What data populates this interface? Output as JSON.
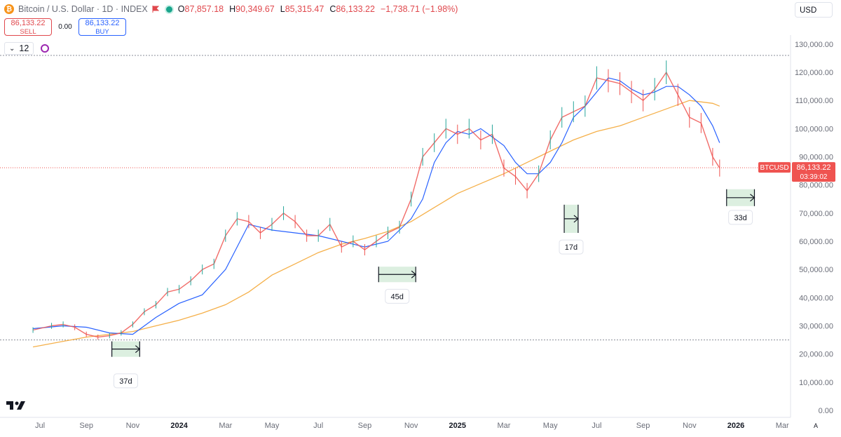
{
  "header": {
    "symbol_title": "Bitcoin / U.S. Dollar · 1D · INDEX",
    "ohlc": [
      {
        "key": "O",
        "value": "87,857.18"
      },
      {
        "key": "H",
        "value": "90,349.67"
      },
      {
        "key": "L",
        "value": "85,315.47"
      },
      {
        "key": "C",
        "value": "86,133.22"
      }
    ],
    "change": "−1,738.71 (−1.98%)",
    "sell_price": "86,133.22",
    "sell_label": "SELL",
    "spread": "0.00",
    "buy_price": "86,133.22",
    "buy_label": "BUY",
    "indicator_count": "12",
    "currency": "USD"
  },
  "price_tag": {
    "symbol": "BTCUSD",
    "price": "86,133.22",
    "countdown": "03:39:02"
  },
  "colors": {
    "up": "#26a69a",
    "down": "#ef5350",
    "ma_fast": "#2962ff",
    "ma_slow": "#f5b04a",
    "range_fill": "#dcefe0"
  },
  "chart_data": {
    "type": "line",
    "title": "Bitcoin / U.S. Dollar · 1D · INDEX",
    "ylim": [
      0,
      135000
    ],
    "y_ticks": [
      "130,000.00",
      "120,000.00",
      "110,000.00",
      "100,000.00",
      "90,000.00",
      "80,000.00",
      "70,000.00",
      "60,000.00",
      "50,000.00",
      "40,000.00",
      "30,000.00",
      "20,000.00",
      "10,000.00",
      "0.00"
    ],
    "x_ticks": [
      {
        "label": "Jul",
        "t": 0
      },
      {
        "label": "Sep",
        "t": 2
      },
      {
        "label": "Nov",
        "t": 4
      },
      {
        "label": "2024",
        "t": 6
      },
      {
        "label": "Mar",
        "t": 8
      },
      {
        "label": "May",
        "t": 10
      },
      {
        "label": "Jul",
        "t": 12
      },
      {
        "label": "Sep",
        "t": 14
      },
      {
        "label": "Nov",
        "t": 16
      },
      {
        "label": "2025",
        "t": 18
      },
      {
        "label": "Mar",
        "t": 20
      },
      {
        "label": "May",
        "t": 22
      },
      {
        "label": "Jul",
        "t": 24
      },
      {
        "label": "Sep",
        "t": 26
      },
      {
        "label": "Nov",
        "t": 28
      },
      {
        "label": "2026",
        "t": 30
      },
      {
        "label": "Mar",
        "t": 32
      }
    ],
    "series": [
      {
        "values_x": [
          -0.3,
          0.5,
          1.0,
          1.5,
          2.0,
          2.5,
          3.0,
          3.5,
          4.0,
          4.5,
          5.0,
          5.5,
          6.0,
          6.5,
          7.0,
          7.5,
          8.0,
          8.5,
          9.0,
          9.5,
          10.0,
          10.5,
          11.0,
          11.5,
          12.0,
          12.5,
          13.0,
          13.5,
          14.0,
          14.5,
          15.0,
          15.5,
          16.0,
          16.5,
          17.0,
          17.5,
          18.0,
          18.5,
          19.0,
          19.5,
          20.0,
          20.5,
          21.0,
          21.5,
          22.0,
          22.5,
          23.0,
          23.5,
          24.0,
          24.5,
          25.0,
          25.5,
          26.0,
          26.5,
          27.0,
          27.5,
          28.0,
          28.5,
          29.0,
          29.3
        ],
        "values_y": [
          28500,
          30000,
          30500,
          29500,
          27000,
          26000,
          26500,
          27500,
          30500,
          35000,
          37500,
          42000,
          43000,
          46000,
          50000,
          52000,
          62000,
          68000,
          67000,
          63000,
          66000,
          70000,
          67000,
          62000,
          62000,
          66000,
          58000,
          60000,
          57000,
          60000,
          63000,
          65000,
          75000,
          90000,
          95000,
          100000,
          98000,
          100000,
          96000,
          98000,
          86000,
          83000,
          78000,
          84000,
          96000,
          104000,
          106000,
          108000,
          118000,
          117000,
          116000,
          113000,
          110000,
          114000,
          120000,
          112000,
          104000,
          102000,
          90000,
          86000
        ]
      },
      {
        "values_x": [
          -0.3,
          1.0,
          2.0,
          3.0,
          4.0,
          5.0,
          6.0,
          7.0,
          8.0,
          9.0,
          10.0,
          11.0,
          12.0,
          13.0,
          14.0,
          15.0,
          16.0,
          16.5,
          17.0,
          17.5,
          18.0,
          18.5,
          19.0,
          19.5,
          20.0,
          20.5,
          21.0,
          21.5,
          22.0,
          22.5,
          23.0,
          23.5,
          24.0,
          24.5,
          25.0,
          25.5,
          26.0,
          26.5,
          27.0,
          27.5,
          28.0,
          28.5,
          29.0,
          29.3
        ],
        "values_y": [
          29000,
          30000,
          29500,
          27500,
          27000,
          33000,
          38000,
          41000,
          50000,
          66000,
          64000,
          63000,
          62000,
          60000,
          58000,
          60000,
          68000,
          75000,
          88000,
          95000,
          99000,
          98000,
          100000,
          97000,
          94000,
          88000,
          84000,
          84000,
          88000,
          95000,
          104000,
          108000,
          113000,
          118000,
          117000,
          114000,
          112000,
          113000,
          115000,
          115000,
          112000,
          108000,
          101000,
          95000
        ]
      },
      {
        "values_x": [
          -0.3,
          1.0,
          2.0,
          3.0,
          4.0,
          5.0,
          6.0,
          7.0,
          8.0,
          9.0,
          10.0,
          11.0,
          12.0,
          13.0,
          14.0,
          15.0,
          16.0,
          17.0,
          18.0,
          19.0,
          20.0,
          21.0,
          22.0,
          23.0,
          24.0,
          25.0,
          26.0,
          27.0,
          28.0,
          29.0,
          29.3
        ],
        "values_y": [
          22500,
          24500,
          26000,
          27000,
          28000,
          30000,
          32000,
          34500,
          37500,
          42000,
          48000,
          52000,
          56000,
          59000,
          61000,
          63500,
          67000,
          72000,
          77000,
          80500,
          84000,
          88000,
          92000,
          96000,
          99000,
          101000,
          104000,
          107000,
          110000,
          109000,
          108000
        ]
      }
    ],
    "annotations": {
      "hlines": [
        126000,
        25000
      ],
      "current_price": 86133.22,
      "ranges": [
        {
          "label": "37d",
          "x": [
            3.1,
            4.3
          ],
          "y": [
            24500,
            19000
          ],
          "label_y": 10500
        },
        {
          "label": "45d",
          "x": [
            14.6,
            16.2
          ],
          "y": [
            51000,
            45500
          ],
          "label_y": 40500
        },
        {
          "label": "17d",
          "x": [
            22.6,
            23.2
          ],
          "y": [
            73000,
            63000
          ],
          "label_y": 58000
        },
        {
          "label": "33d",
          "x": [
            29.6,
            30.8
          ],
          "y": [
            78500,
            72500
          ],
          "label_y": 68500
        }
      ]
    }
  }
}
